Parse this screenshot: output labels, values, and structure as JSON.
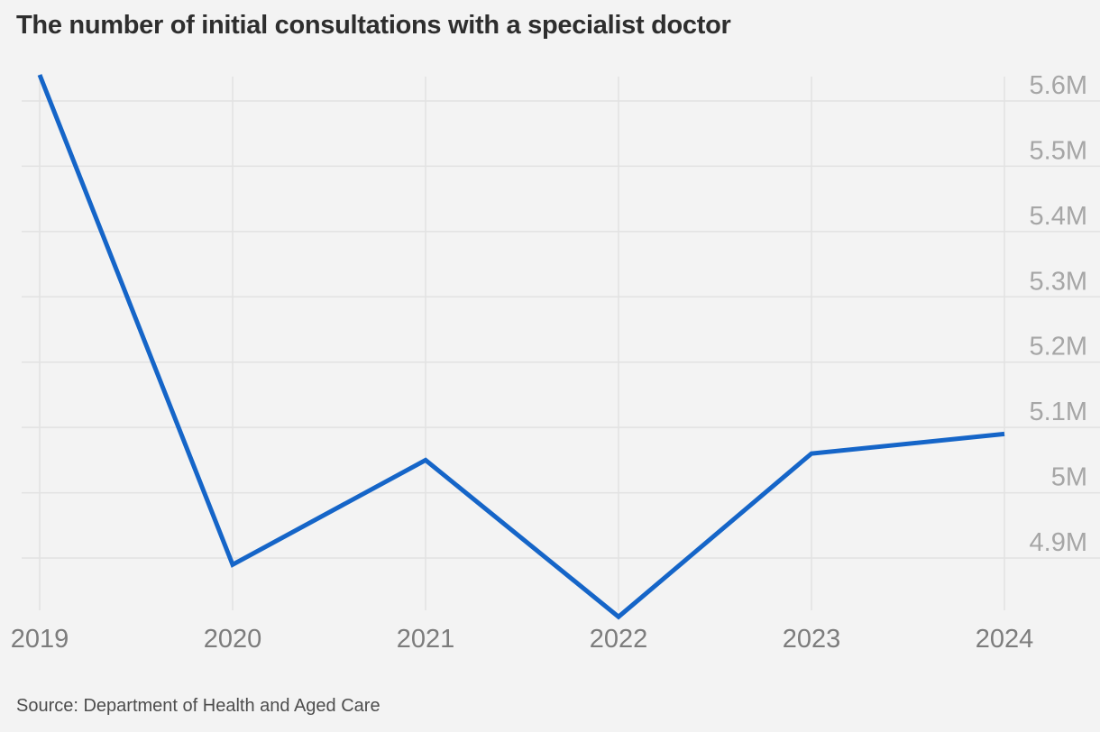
{
  "header": {
    "title": "The number of initial consultations with a specialist doctor"
  },
  "footer": {
    "source_label": "Source: Department of Health and Aged Care"
  },
  "colors": {
    "background": "#f3f3f3",
    "line": "#1565c8",
    "grid": "#e2e2e2",
    "title_text": "#2e2e2e",
    "y_tick_text": "#a6a6a6",
    "x_tick_text": "#7c7c7c",
    "source_text": "#4d4d4d"
  },
  "chart_data": {
    "type": "line",
    "title": "The number of initial consultations with a specialist doctor",
    "source": "Department of Health and Aged Care",
    "categories": [
      "2019",
      "2020",
      "2021",
      "2022",
      "2023",
      "2024"
    ],
    "x": [
      2019,
      2020,
      2021,
      2022,
      2023,
      2024
    ],
    "values_millions": [
      5.64,
      4.89,
      5.05,
      4.81,
      5.06,
      5.09
    ],
    "unit": "M",
    "series_name": "Initial consultations with a specialist doctor",
    "y_tick_labels": [
      "5.6M",
      "5.5M",
      "5.4M",
      "5.3M",
      "5.2M",
      "5.1M",
      "5M",
      "4.9M"
    ],
    "y_tick_values": [
      5.6,
      5.5,
      5.4,
      5.3,
      5.2,
      5.1,
      5.0,
      4.9
    ],
    "ylim": [
      4.82,
      5.64
    ],
    "xlabel": "",
    "ylabel": "",
    "grid": "on",
    "legend_position": "none",
    "y_axis_side": "right"
  }
}
